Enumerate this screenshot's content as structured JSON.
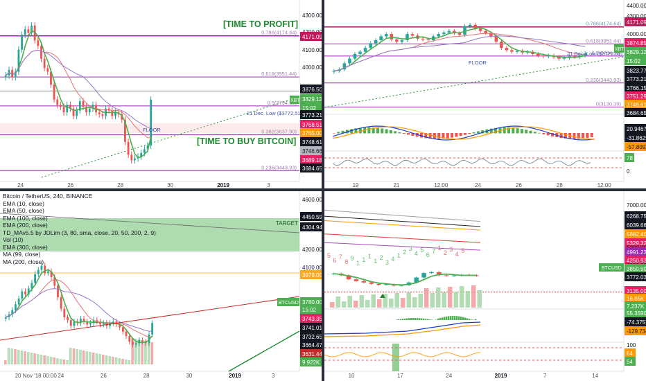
{
  "panels": {
    "top_left": {
      "annotations": {
        "profit": "[TIME TO PROFIT]",
        "buy": "[TIME TO BUY BITCOIN]",
        "floor": "FLOOR",
        "dec_low": "21 Dec. Low ($3772.51)"
      },
      "fib_labels": [
        "0.786(4174.64)",
        "0.618(3951.44)",
        "0.5(3794.59)",
        "0.382(3637.90)",
        "0.236(3443.93)"
      ],
      "price_axis": [
        {
          "text": "4300.00",
          "price": 4300,
          "bg": "",
          "fg": "#131722"
        },
        {
          "text": "4200.00",
          "price": 4200,
          "bg": "",
          "fg": "#131722"
        },
        {
          "text": "4171.09",
          "price": 4171,
          "bg": "#c2185b",
          "fg": "#ffffff"
        },
        {
          "text": "4100.00",
          "price": 4100,
          "bg": "",
          "fg": "#131722"
        },
        {
          "text": "4000.00",
          "price": 4000,
          "bg": "",
          "fg": "#131722"
        },
        {
          "text": "3876.50",
          "price": 3876,
          "bg": "#131722",
          "fg": "#ffffff"
        },
        {
          "text": "3829.12",
          "price": 3829,
          "bg": "#4caf50",
          "fg": "#ffffff"
        },
        {
          "text": "15:02",
          "price": 3812,
          "bg": "#4caf50",
          "fg": "#ffffff"
        },
        {
          "text": "3773.21",
          "price": 3773,
          "bg": "#131722",
          "fg": "#ffffff"
        },
        {
          "text": "3768.51",
          "price": 3755,
          "bg": "#e91e63",
          "fg": "#ffffff"
        },
        {
          "text": "3765.00",
          "price": 3738,
          "bg": "#ff9800",
          "fg": "#ffffff"
        },
        {
          "text": "3748.61",
          "price": 3721,
          "bg": "#131722",
          "fg": "#ffffff"
        },
        {
          "text": "3746.66",
          "price": 3704,
          "bg": "#b2b5be",
          "fg": "#131722"
        },
        {
          "text": "3689.18",
          "price": 3675,
          "bg": "#e91e63",
          "fg": "#ffffff"
        },
        {
          "text": "3684.65",
          "price": 3658,
          "bg": "#131722",
          "fg": "#ffffff"
        }
      ],
      "x_axis": [
        "24",
        "26",
        "28",
        "30",
        "2019",
        "3"
      ],
      "xbt_tag": "XBT"
    },
    "top_right": {
      "annotations": {
        "floor": "FLOOR",
        "dec_low": "21 Dec. Low ($3772.51)"
      },
      "fib_labels": [
        "0.786(4174.64)",
        "0.618(3951.44)",
        "0.5(3794.59)",
        "0.236(3443.93)",
        "0(3130.39)"
      ],
      "price_axis": [
        {
          "text": "4400.00",
          "price": 4400,
          "bg": "",
          "fg": "#131722"
        },
        {
          "text": "4300.00",
          "price": 4300,
          "bg": "",
          "fg": "#131722"
        },
        {
          "text": "4171.09",
          "price": 4171,
          "bg": "#c2185b",
          "fg": "#ffffff"
        },
        {
          "text": "4000.00",
          "price": 4000,
          "bg": "",
          "fg": "#131722"
        },
        {
          "text": "3874.85",
          "price": 3874,
          "bg": "#e91e63",
          "fg": "#ffffff"
        },
        {
          "text": "3829.12",
          "price": 3829,
          "bg": "#4caf50",
          "fg": "#ffffff"
        },
        {
          "text": "15:02",
          "price": 3790,
          "bg": "#4caf50",
          "fg": "#ffffff"
        },
        {
          "text": "3823.77",
          "price": 3750,
          "bg": "#131722",
          "fg": "#ffffff"
        },
        {
          "text": "3773.21",
          "price": 3710,
          "bg": "#131722",
          "fg": "#ffffff"
        },
        {
          "text": "3766.15",
          "price": 3672,
          "bg": "#131722",
          "fg": "#ffffff"
        },
        {
          "text": "3751.29",
          "price": 3634,
          "bg": "#e91e63",
          "fg": "#ffffff"
        },
        {
          "text": "3748.61",
          "price": 3596,
          "bg": "#ff9800",
          "fg": "#ffffff"
        },
        {
          "text": "3684.65",
          "price": 3556,
          "bg": "#131722",
          "fg": "#ffffff"
        }
      ],
      "osc1_axis": [
        {
          "text": "20.9467",
          "bg": "#131722",
          "fg": "#ffffff"
        },
        {
          "text": "-31.8625",
          "bg": "#131722",
          "fg": "#ffffff"
        },
        {
          "text": "-57.8092",
          "bg": "#ff9800",
          "fg": "#131722"
        }
      ],
      "osc2_axis": [
        {
          "text": "78",
          "bg": "#4caf50",
          "fg": "#ffffff"
        },
        {
          "text": "0",
          "bg": "",
          "fg": "#131722"
        }
      ],
      "x_axis": [
        "19",
        "21",
        "12:00",
        "24",
        "26",
        "28",
        "12:00"
      ],
      "xbt_tag": "XBT"
    },
    "bottom_left": {
      "legend": [
        "Bitcoin / TetherUS, 240, BINANCE",
        "EMA (10, close)",
        "EMA (50, close)",
        "EMA (100, close)",
        "EMA (200, close)",
        "TD_MAv5.5 by JDLim (3, 80, sma, close, 20, 50, 200, 2, 9)",
        "Vol (10)",
        "EMA (300, close)",
        "MA (99, close)",
        "MA (200, close)"
      ],
      "target": "TARGET",
      "price_axis": [
        {
          "text": "4600.00",
          "price": 4600,
          "bg": "",
          "fg": "#131722"
        },
        {
          "text": "4500.00",
          "price": 4500,
          "bg": "",
          "fg": "#131722"
        },
        {
          "text": "4450.59",
          "price": 4450,
          "bg": "#131722",
          "fg": "#ffffff"
        },
        {
          "text": "4304.94",
          "price": 4304,
          "bg": "#131722",
          "fg": "#ffffff"
        },
        {
          "text": "4200.00",
          "price": 4200,
          "bg": "",
          "fg": "#131722"
        },
        {
          "text": "4100.00",
          "price": 4100,
          "bg": "",
          "fg": "#131722"
        },
        {
          "text": "3979.00",
          "price": 3979,
          "bg": "#ffa726",
          "fg": "#ffffff"
        },
        {
          "text": "3780.00",
          "price": 3782,
          "bg": "#4caf50",
          "fg": "#ffffff"
        },
        {
          "text": "15:02",
          "price": 3755,
          "bg": "#4caf50",
          "fg": "#ffffff"
        },
        {
          "text": "3743.35",
          "price": 3722,
          "bg": "#e91e63",
          "fg": "#ffffff"
        },
        {
          "text": "3741.01",
          "price": 3689,
          "bg": "#131722",
          "fg": "#ffffff"
        },
        {
          "text": "3732.65",
          "price": 3656,
          "bg": "#131722",
          "fg": "#ffffff"
        },
        {
          "text": "3664.47",
          "price": 3623,
          "bg": "#131722",
          "fg": "#ffffff"
        },
        {
          "text": "3631.44",
          "price": 3590,
          "bg": "#c62828",
          "fg": "#ffffff"
        },
        {
          "text": "9.922K",
          "price": 3557,
          "bg": "#4caf50",
          "fg": "#ffffff"
        }
      ],
      "x_axis": [
        "20 Nov '18 00:00",
        "24",
        "26",
        "28",
        "30",
        "2019",
        "3"
      ],
      "btc_tag": "BTCUSDT"
    },
    "bottom_right": {
      "td_numbers": [
        "5",
        "6",
        "7",
        "8",
        "9",
        "1",
        "1",
        "1",
        "1",
        "2",
        "3",
        "4",
        "1",
        "2",
        "3",
        "4",
        "5",
        "6",
        "7",
        "1",
        "2",
        "3",
        "4",
        "5"
      ],
      "price_axis": [
        {
          "text": "7000.00",
          "bg": "",
          "fg": "#131722"
        },
        {
          "text": "6268.75",
          "bg": "#131722",
          "fg": "#ffffff"
        },
        {
          "text": "6039.66",
          "bg": "#131722",
          "fg": "#ffffff"
        },
        {
          "text": "5882.46",
          "bg": "#ff9800",
          "fg": "#ffffff"
        },
        {
          "text": "5329.32",
          "bg": "#e91e63",
          "fg": "#ffffff"
        },
        {
          "text": "5000.00",
          "bg": "",
          "fg": "#131722"
        },
        {
          "text": "4991.23",
          "bg": "#9c27b0",
          "fg": "#ffffff"
        },
        {
          "text": "4250.93",
          "bg": "#e91e63",
          "fg": "#ffffff"
        },
        {
          "text": "4000.00",
          "bg": "",
          "fg": "#131722"
        },
        {
          "text": "3850.90",
          "bg": "#4caf50",
          "fg": "#ffffff"
        },
        {
          "text": "3772.03",
          "bg": "#131722",
          "fg": "#ffffff"
        },
        {
          "text": "3135.00",
          "bg": "#e91e63",
          "fg": "#ffffff"
        },
        {
          "text": "16.65K",
          "bg": "#ff9800",
          "fg": "#ffffff"
        },
        {
          "text": "7.237K",
          "bg": "#4caf50",
          "fg": "#ffffff"
        }
      ],
      "osc1_axis": [
        {
          "text": "55.3590",
          "bg": "#4caf50",
          "fg": "#ffffff"
        },
        {
          "text": "-74.3757",
          "bg": "#131722",
          "fg": "#ffffff"
        },
        {
          "text": "-129.7347",
          "bg": "#ff9800",
          "fg": "#131722"
        }
      ],
      "osc2_axis": [
        {
          "text": "100",
          "bg": "",
          "fg": "#131722"
        },
        {
          "text": "64",
          "bg": "#ff9800",
          "fg": "#ffffff"
        },
        {
          "text": "54",
          "bg": "#4caf50",
          "fg": "#ffffff"
        }
      ],
      "x_axis": [
        "10",
        "17",
        "24",
        "2019",
        "7",
        "14"
      ],
      "btc_tag": "BTCUSD"
    }
  },
  "colors": {
    "up": "#26a69a",
    "down": "#ef5350",
    "green_line": "#4caf50",
    "fib_purple": "#9c27b0",
    "annotation_green": "#1b8a2f"
  },
  "chart_data": [
    {
      "type": "candlestick",
      "panel": "top_left",
      "pair": "XBT",
      "x_ticks": [
        "24",
        "26",
        "28",
        "30",
        "2019",
        "3"
      ],
      "ylim": [
        3400,
        4350
      ],
      "fib_levels": [
        {
          "ratio": 0.786,
          "price": 4174.64
        },
        {
          "ratio": 0.618,
          "price": 3951.44
        },
        {
          "ratio": 0.5,
          "price": 3794.59
        },
        {
          "ratio": 0.382,
          "price": 3637.9
        },
        {
          "ratio": 0.236,
          "price": 3443.93
        }
      ],
      "closes": [
        3960,
        3990,
        3950,
        3980,
        4100,
        4180,
        4210,
        4190,
        4230,
        4150,
        4120,
        4050,
        4000,
        3980,
        3910,
        3830,
        3800,
        3790,
        3760,
        3800,
        3780,
        3740,
        3770,
        3820,
        3790,
        3760,
        3780,
        3800,
        3760,
        3750,
        3740,
        3780,
        3770,
        3740,
        3760,
        3750,
        3720,
        3600,
        3530,
        3500,
        3510,
        3520,
        3540,
        3560,
        3580,
        3829
      ],
      "last_price": 3829.12
    },
    {
      "type": "candlestick",
      "panel": "top_right",
      "pair": "XBT",
      "x_ticks": [
        "19",
        "21",
        "12:00",
        "24",
        "26",
        "28",
        "12:00"
      ],
      "ylim": [
        3100,
        4450
      ],
      "fib_levels": [
        {
          "ratio": 0.786,
          "price": 4174.64
        },
        {
          "ratio": 0.618,
          "price": 3951.44
        },
        {
          "ratio": 0.5,
          "price": 3794.59
        },
        {
          "ratio": 0.236,
          "price": 3443.93
        },
        {
          "ratio": 0,
          "price": 3130.39
        }
      ],
      "closes": [
        3600,
        3620,
        3700,
        3760,
        3820,
        3850,
        3900,
        3960,
        4000,
        4050,
        4080,
        4010,
        3980,
        4000,
        4080,
        4060,
        4020,
        4010,
        4000,
        4050,
        4080,
        4100,
        4120,
        4090,
        4070,
        4180,
        4200,
        4150,
        4120,
        4090,
        4050,
        3980,
        3900,
        3870,
        3850,
        3860,
        3840,
        3850,
        3820,
        3800,
        3790,
        3800,
        3780,
        3760,
        3770,
        3790,
        3780,
        3800,
        3829
      ],
      "last_price": 3829.12
    },
    {
      "type": "candlestick",
      "panel": "bottom_left",
      "pair": "BTCUSDT",
      "exchange": "BINANCE",
      "timeframe": "240",
      "x_ticks": [
        "20 Nov '18 00:00",
        "24",
        "26",
        "28",
        "30",
        "2019",
        "3"
      ],
      "ylim": [
        3550,
        4650
      ],
      "target_zone": [
        4304.94,
        4450.59
      ],
      "closes": [
        3820,
        3840,
        3870,
        3910,
        3950,
        4000,
        3980,
        4020,
        4060,
        4120,
        4150,
        4180,
        4130,
        4140,
        4100,
        4040,
        3960,
        3880,
        3820,
        3800,
        3760,
        3790,
        3780,
        3810,
        3790,
        3770,
        3780,
        3800,
        3790,
        3770,
        3780,
        3760,
        3780,
        3790,
        3770,
        3750,
        3720,
        3690,
        3650,
        3630,
        3640,
        3660,
        3650,
        3640,
        3700,
        3780
      ],
      "last_price": 3780.0
    },
    {
      "type": "candlestick",
      "panel": "bottom_right",
      "pair": "BTCUSD",
      "x_ticks": [
        "10",
        "17",
        "24",
        "2019",
        "7",
        "14"
      ],
      "last_price": 3850.9,
      "closes": [
        3950,
        3880,
        3700,
        3620,
        3560,
        3500,
        3460,
        3480,
        3420,
        3440,
        3560,
        3780,
        3980,
        4020,
        3880,
        3850,
        3870,
        3900,
        3880,
        3850
      ]
    }
  ]
}
